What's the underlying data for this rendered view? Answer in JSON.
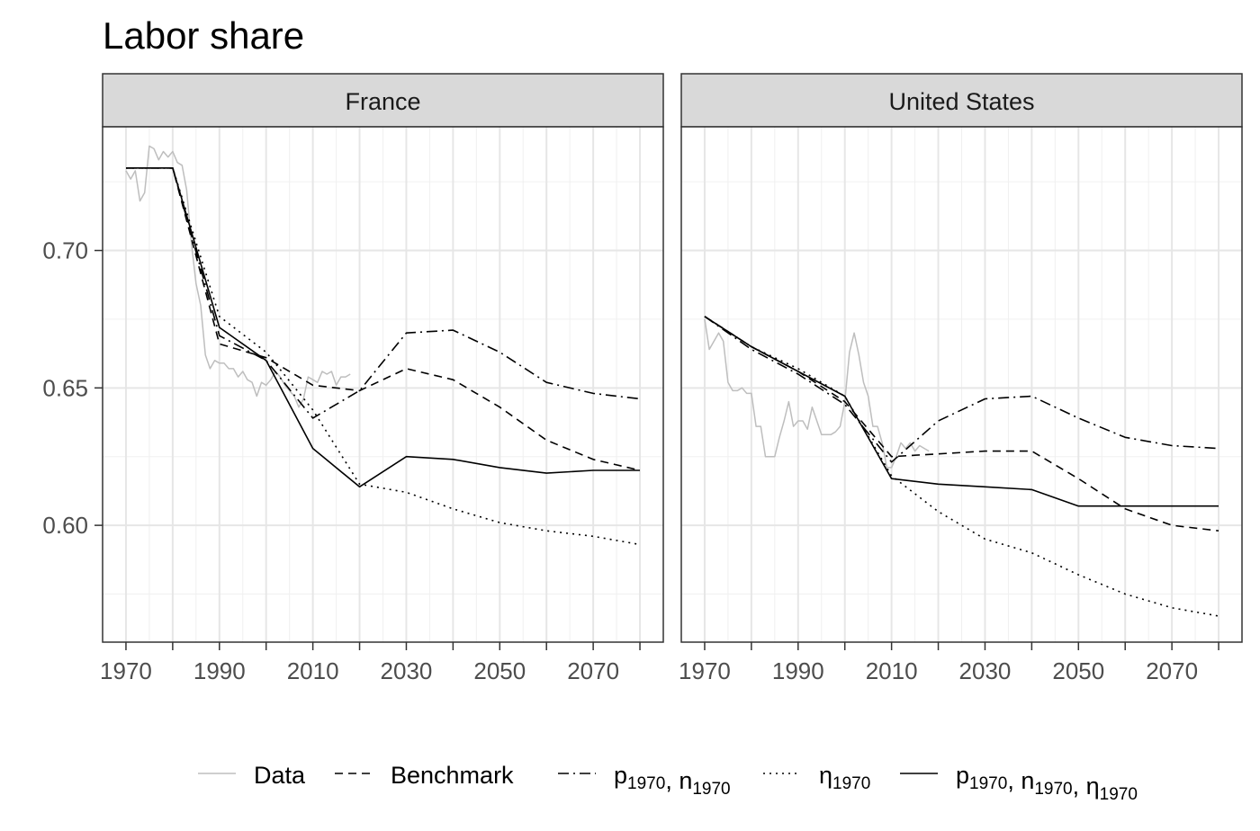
{
  "chart_data": {
    "type": "line",
    "title": "Labor share",
    "xlabel": "",
    "ylabel": "",
    "xlim": [
      1965,
      2085
    ],
    "ylim": [
      0.5575,
      0.745
    ],
    "x_ticks": [
      1970,
      1990,
      2010,
      2030,
      2050,
      2070
    ],
    "x_minor_ticks": [
      1980,
      2000,
      2020,
      2040,
      2060,
      2080
    ],
    "y_ticks": [
      0.6,
      0.65,
      0.7
    ],
    "y_tick_labels": [
      "0.60",
      "0.65",
      "0.70"
    ],
    "grid": true,
    "legend_position": "bottom",
    "legend": [
      {
        "key": "data",
        "label": "Data",
        "sub": "",
        "color": "#bebebe",
        "dash": "solid"
      },
      {
        "key": "bench",
        "label": "Benchmark",
        "sub": "",
        "color": "#000000",
        "dash": "dashed"
      },
      {
        "key": "pn",
        "parts": [
          [
            "p",
            "1970"
          ],
          [
            ", n",
            "1970"
          ]
        ],
        "color": "#000000",
        "dash": "dotdash"
      },
      {
        "key": "eta",
        "parts": [
          [
            "η",
            "1970"
          ]
        ],
        "color": "#000000",
        "dash": "dotted"
      },
      {
        "key": "pneta",
        "parts": [
          [
            "p",
            "1970"
          ],
          [
            ", n",
            "1970"
          ],
          [
            ", η",
            "1970"
          ]
        ],
        "color": "#000000",
        "dash": "solid"
      }
    ],
    "panels": [
      {
        "name": "France",
        "series": [
          {
            "key": "data",
            "x": [
              1970,
              1971,
              1972,
              1973,
              1974,
              1975,
              1976,
              1977,
              1978,
              1979,
              1980,
              1981,
              1982,
              1983,
              1984,
              1985,
              1986,
              1987,
              1988,
              1989,
              1990,
              1991,
              1992,
              1993,
              1994,
              1995,
              1996,
              1997,
              1998,
              1999,
              2000,
              2001,
              2002,
              2003,
              2004,
              2005,
              2006,
              2007,
              2008,
              2009,
              2010,
              2011,
              2012,
              2013,
              2014,
              2015,
              2016,
              2017,
              2018
            ],
            "y": [
              0.729,
              0.726,
              0.729,
              0.718,
              0.721,
              0.738,
              0.737,
              0.733,
              0.736,
              0.734,
              0.736,
              0.732,
              0.731,
              0.722,
              0.703,
              0.688,
              0.68,
              0.662,
              0.657,
              0.66,
              0.659,
              0.659,
              0.657,
              0.657,
              0.654,
              0.656,
              0.653,
              0.652,
              0.647,
              0.652,
              0.651,
              0.653,
              0.656,
              0.654,
              0.651,
              0.649,
              0.647,
              0.643,
              0.646,
              0.654,
              0.653,
              0.652,
              0.656,
              0.655,
              0.656,
              0.651,
              0.654,
              0.654,
              0.655
            ]
          },
          {
            "key": "bench",
            "x": [
              1970,
              1980,
              1990,
              2000,
              2010,
              2020,
              2030,
              2040,
              2050,
              2060,
              2070,
              2080
            ],
            "y": [
              0.73,
              0.73,
              0.666,
              0.661,
              0.651,
              0.649,
              0.657,
              0.653,
              0.643,
              0.631,
              0.624,
              0.62
            ]
          },
          {
            "key": "pn",
            "x": [
              1970,
              1980,
              1990,
              2000,
              2010,
              2020,
              2030,
              2040,
              2050,
              2060,
              2070,
              2080
            ],
            "y": [
              0.73,
              0.73,
              0.669,
              0.66,
              0.639,
              0.649,
              0.67,
              0.671,
              0.663,
              0.652,
              0.648,
              0.646
            ]
          },
          {
            "key": "eta",
            "x": [
              1970,
              1980,
              1990,
              2000,
              2010,
              2020,
              2030,
              2040,
              2050,
              2060,
              2070,
              2080
            ],
            "y": [
              0.73,
              0.73,
              0.676,
              0.663,
              0.642,
              0.615,
              0.612,
              0.606,
              0.601,
              0.598,
              0.596,
              0.593
            ]
          },
          {
            "key": "pneta",
            "x": [
              1970,
              1980,
              1990,
              2000,
              2010,
              2020,
              2030,
              2040,
              2050,
              2060,
              2070,
              2080
            ],
            "y": [
              0.73,
              0.73,
              0.672,
              0.66,
              0.628,
              0.614,
              0.625,
              0.624,
              0.621,
              0.619,
              0.62,
              0.62
            ]
          }
        ]
      },
      {
        "name": "United States",
        "series": [
          {
            "key": "data",
            "x": [
              1970,
              1971,
              1972,
              1973,
              1974,
              1975,
              1976,
              1977,
              1978,
              1979,
              1980,
              1981,
              1982,
              1983,
              1984,
              1985,
              1986,
              1987,
              1988,
              1989,
              1990,
              1991,
              1992,
              1993,
              1994,
              1995,
              1996,
              1997,
              1998,
              1999,
              2000,
              2001,
              2002,
              2003,
              2004,
              2005,
              2006,
              2007,
              2008,
              2009,
              2010,
              2011,
              2012,
              2013,
              2014,
              2015,
              2016,
              2017,
              2018
            ],
            "y": [
              0.675,
              0.664,
              0.667,
              0.67,
              0.667,
              0.652,
              0.649,
              0.649,
              0.65,
              0.648,
              0.648,
              0.636,
              0.636,
              0.625,
              0.625,
              0.625,
              0.632,
              0.638,
              0.645,
              0.636,
              0.638,
              0.638,
              0.635,
              0.643,
              0.638,
              0.633,
              0.633,
              0.633,
              0.634,
              0.636,
              0.645,
              0.663,
              0.67,
              0.662,
              0.652,
              0.647,
              0.636,
              0.636,
              0.63,
              0.621,
              0.621,
              0.625,
              0.63,
              0.628,
              0.63,
              0.627,
              0.629,
              0.628,
              0.627
            ]
          },
          {
            "key": "bench",
            "x": [
              1970,
              1980,
              1990,
              2000,
              2010,
              2020,
              2030,
              2040,
              2050,
              2060,
              2070,
              2080
            ],
            "y": [
              0.676,
              0.665,
              0.656,
              0.645,
              0.625,
              0.626,
              0.627,
              0.627,
              0.617,
              0.606,
              0.6,
              0.598
            ]
          },
          {
            "key": "pn",
            "x": [
              1970,
              1980,
              1990,
              2000,
              2010,
              2020,
              2030,
              2040,
              2050,
              2060,
              2070,
              2080
            ],
            "y": [
              0.676,
              0.664,
              0.655,
              0.644,
              0.623,
              0.638,
              0.646,
              0.647,
              0.639,
              0.632,
              0.629,
              0.628
            ]
          },
          {
            "key": "eta",
            "x": [
              1970,
              1980,
              1990,
              2000,
              2010,
              2020,
              2030,
              2040,
              2050,
              2060,
              2070,
              2080
            ],
            "y": [
              0.676,
              0.665,
              0.657,
              0.647,
              0.618,
              0.605,
              0.595,
              0.59,
              0.582,
              0.575,
              0.57,
              0.567
            ]
          },
          {
            "key": "pneta",
            "x": [
              1970,
              1980,
              1990,
              2000,
              2010,
              2020,
              2030,
              2040,
              2050,
              2060,
              2070,
              2080
            ],
            "y": [
              0.676,
              0.665,
              0.656,
              0.647,
              0.617,
              0.615,
              0.614,
              0.613,
              0.607,
              0.607,
              0.607,
              0.607
            ]
          }
        ]
      }
    ]
  }
}
